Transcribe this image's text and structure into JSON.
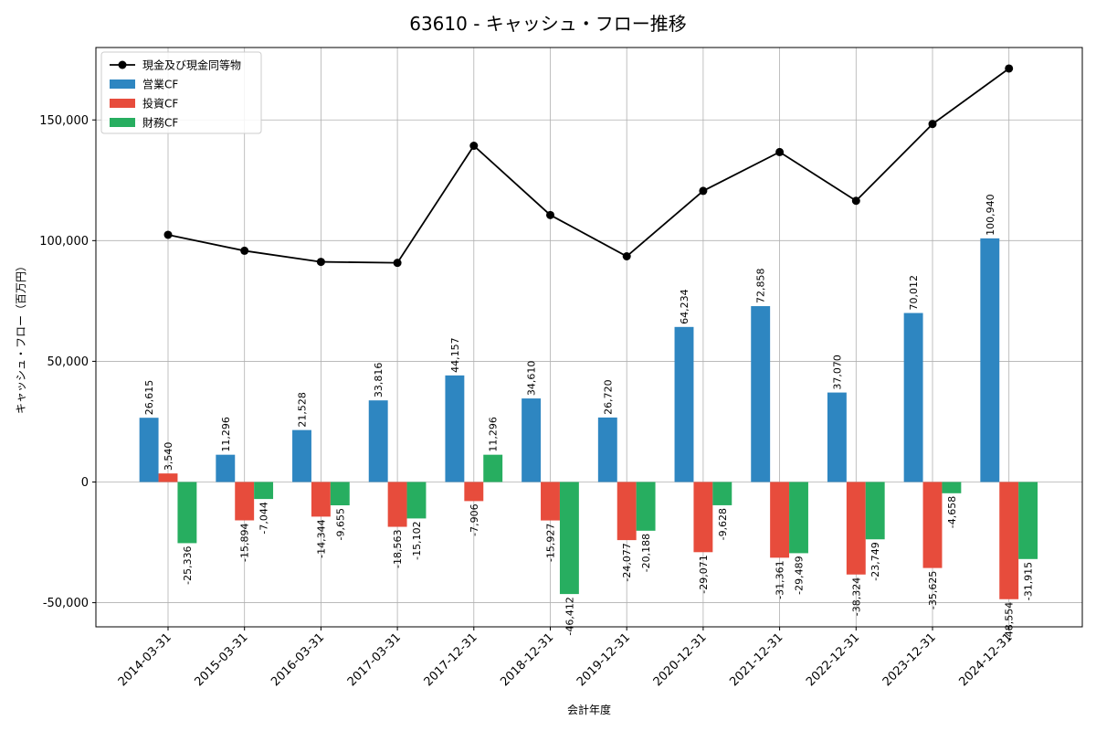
{
  "chart_data": {
    "type": "bar",
    "title": "63610 - キャッシュ・フロー推移",
    "xlabel": "会計年度",
    "ylabel": "キャッシュ・フロー（百万円）",
    "categories": [
      "2014-03-31",
      "2015-03-31",
      "2016-03-31",
      "2017-03-31",
      "2017-12-31",
      "2018-12-31",
      "2019-12-31",
      "2020-12-31",
      "2021-12-31",
      "2022-12-31",
      "2023-12-31",
      "2024-12-31"
    ],
    "ylim": [
      -60000,
      180000
    ],
    "yticks": [
      -50000,
      0,
      50000,
      100000,
      150000
    ],
    "ytick_labels": [
      "-50,000",
      "0",
      "50,000",
      "100,000",
      "150,000"
    ],
    "grid": true,
    "legend_position": "top-left",
    "series": [
      {
        "name": "現金及び現金同等物",
        "kind": "line",
        "color": "#000000",
        "values": [
          102400,
          95800,
          91200,
          90800,
          139300,
          110600,
          93500,
          120600,
          136700,
          116500,
          148300,
          171300
        ]
      },
      {
        "name": "営業CF",
        "kind": "bar",
        "color": "#2e86c1",
        "values": [
          26615,
          11296,
          21528,
          33816,
          44157,
          34610,
          26720,
          64234,
          72858,
          37070,
          70012,
          100940
        ],
        "labels": [
          "26,615",
          "11,296",
          "21,528",
          "33,816",
          "44,157",
          "34,610",
          "26,720",
          "64,234",
          "72,858",
          "37,070",
          "70,012",
          "100,940"
        ]
      },
      {
        "name": "投資CF",
        "kind": "bar",
        "color": "#e74c3c",
        "values": [
          3540,
          -15894,
          -14344,
          -18563,
          -7906,
          -15927,
          -24077,
          -29071,
          -31361,
          -38324,
          -35625,
          -48554
        ],
        "labels": [
          "3,540",
          "-15,894",
          "-14,344",
          "-18,563",
          "-7,906",
          "-15,927",
          "-24,077",
          "-29,071",
          "-31,361",
          "-38,324",
          "-35,625",
          "-48,554"
        ]
      },
      {
        "name": "財務CF",
        "kind": "bar",
        "color": "#27ae60",
        "values": [
          -25336,
          -7044,
          -9655,
          -15102,
          11296,
          -46412,
          -20188,
          -9628,
          -29489,
          -23749,
          -4658,
          -31915
        ],
        "labels": [
          "-25,336",
          "-7,044",
          "-9,655",
          "-15,102",
          "11,296",
          "-46,412",
          "-20,188",
          "-9,628",
          "-29,489",
          "-23,749",
          "-4,658",
          "-31,915"
        ]
      }
    ]
  }
}
